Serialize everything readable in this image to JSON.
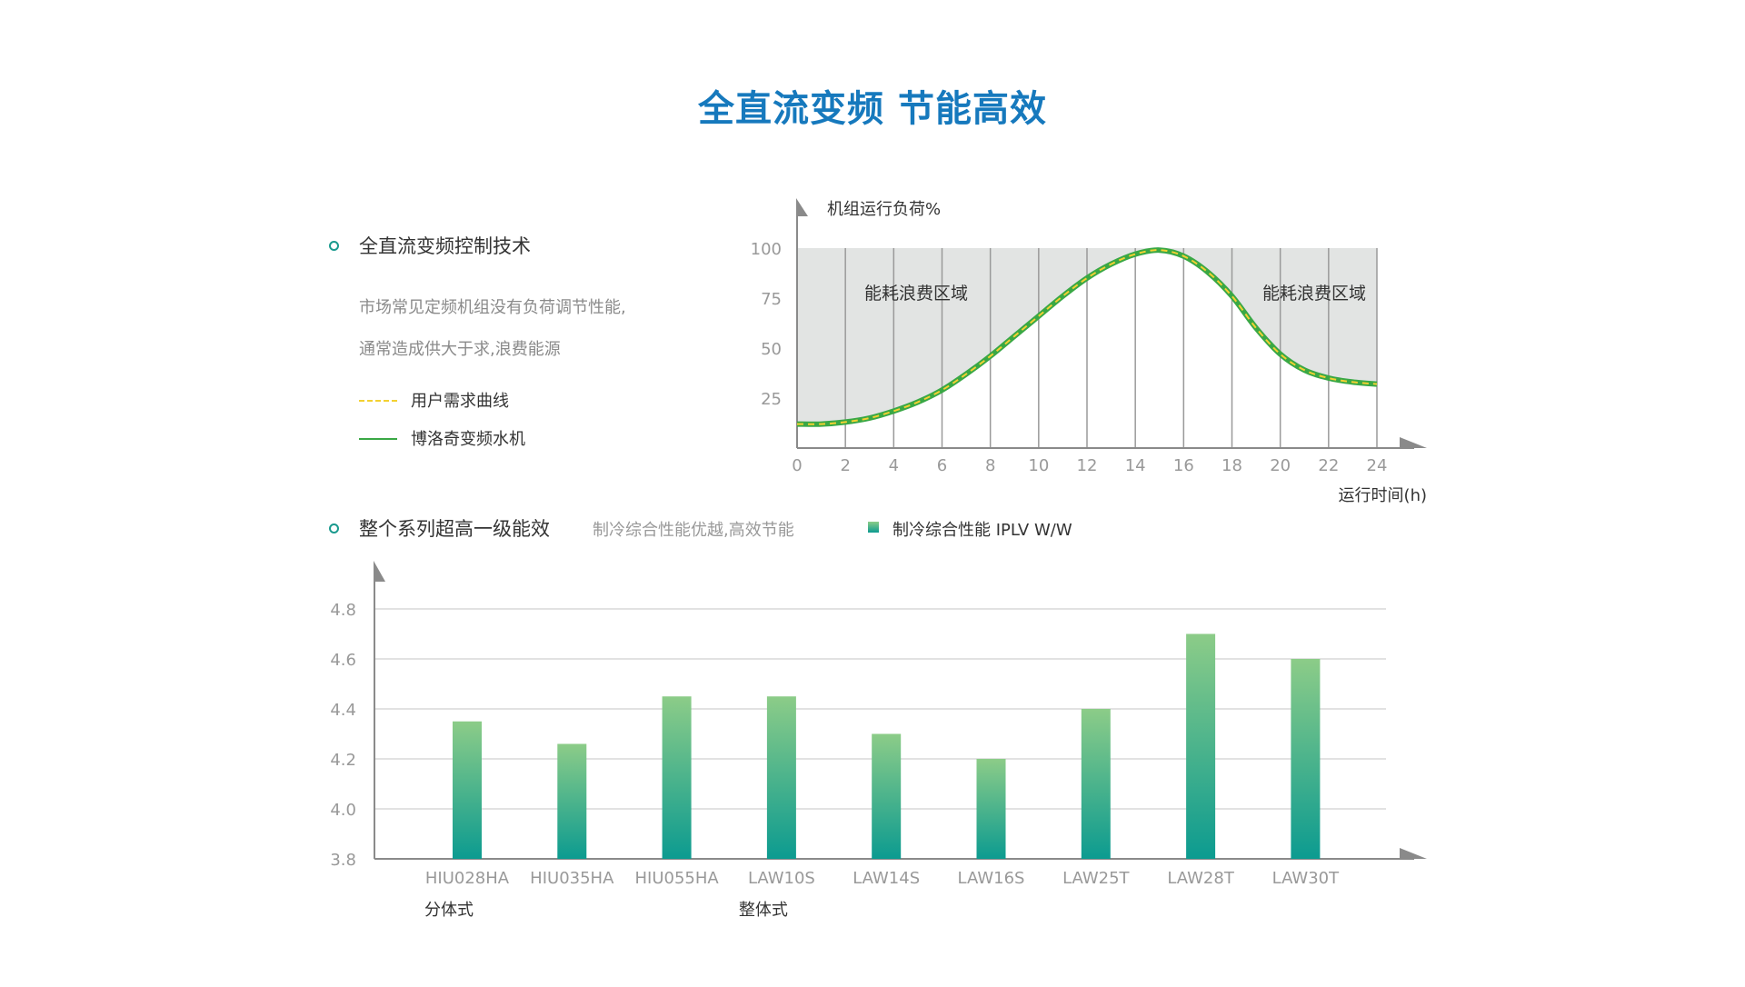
{
  "title": "全直流变频 节能高效",
  "section1": {
    "heading": "全直流变频控制技术",
    "desc_line1": "市场常见定频机组没有负荷调节性能,",
    "desc_line2": "通常造成供大于求,浪费能源",
    "legend_demand": "用户需求曲线",
    "legend_unit": "博洛奇变频水机"
  },
  "section2": {
    "heading": "整个系列超高一级能效",
    "subtext": "制冷综合性能优越,高效节能",
    "legend": "制冷综合性能 IPLV W/W"
  },
  "colors": {
    "title": "#1679bd",
    "curve_green": "#3aa845",
    "curve_yellow": "#f3d132",
    "waste_fill": "#e2e4e3",
    "bar_top": "#8ccc88",
    "bar_bottom": "#0c9b90",
    "bullet": "#1a9a8e"
  },
  "chart_data": [
    {
      "type": "line",
      "ylabel": "机组运行负荷%",
      "xlabel": "运行时间(h)",
      "xlim": [
        0,
        24
      ],
      "ylim": [
        0,
        100
      ],
      "x_ticks": [
        0,
        2,
        4,
        6,
        8,
        10,
        12,
        14,
        16,
        18,
        20,
        22,
        24
      ],
      "y_ticks": [
        25,
        50,
        75,
        100
      ],
      "region_labels": [
        "能耗浪费区域",
        "能耗浪费区域"
      ],
      "grid": "vertical",
      "series": [
        {
          "name": "用户需求曲线",
          "style": "dashed",
          "x": [
            0,
            1,
            2,
            3,
            4,
            5,
            6,
            7,
            8,
            9,
            10,
            11,
            12,
            13,
            14,
            15,
            16,
            17,
            18,
            19,
            20,
            21,
            22,
            23,
            24
          ],
          "values": [
            12,
            12,
            13,
            15,
            18.5,
            23,
            29,
            37,
            46,
            56,
            66,
            76,
            85,
            92,
            97,
            99,
            96,
            88,
            76,
            60,
            47,
            39,
            35,
            33,
            32
          ]
        },
        {
          "name": "博洛奇变频水机",
          "style": "solid",
          "x": [
            0,
            1,
            2,
            3,
            4,
            5,
            6,
            7,
            8,
            9,
            10,
            11,
            12,
            13,
            14,
            15,
            16,
            17,
            18,
            19,
            20,
            21,
            22,
            23,
            24
          ],
          "values": [
            12,
            12,
            13,
            15,
            18.5,
            23,
            29,
            37,
            46,
            56,
            66,
            76,
            85,
            92,
            97,
            99,
            96,
            88,
            76,
            60,
            47,
            39,
            35,
            33,
            32
          ]
        }
      ]
    },
    {
      "type": "bar",
      "categories": [
        "HIU028HA",
        "HIU035HA",
        "HIU055HA",
        "LAW10S",
        "LAW14S",
        "LAW16S",
        "LAW25T",
        "LAW28T",
        "LAW30T"
      ],
      "groups": [
        {
          "label": "分体式",
          "start_index": 0
        },
        {
          "label": "整体式",
          "start_index": 3
        }
      ],
      "series": [
        {
          "name": "制冷综合性能 IPLV W/W",
          "values": [
            4.35,
            4.26,
            4.45,
            4.45,
            4.3,
            4.2,
            4.4,
            4.7,
            4.6
          ]
        }
      ],
      "ylim": [
        3.8,
        4.8
      ],
      "y_ticks": [
        3.8,
        4.0,
        4.2,
        4.4,
        4.6,
        4.8
      ],
      "grid": "horizontal"
    }
  ]
}
